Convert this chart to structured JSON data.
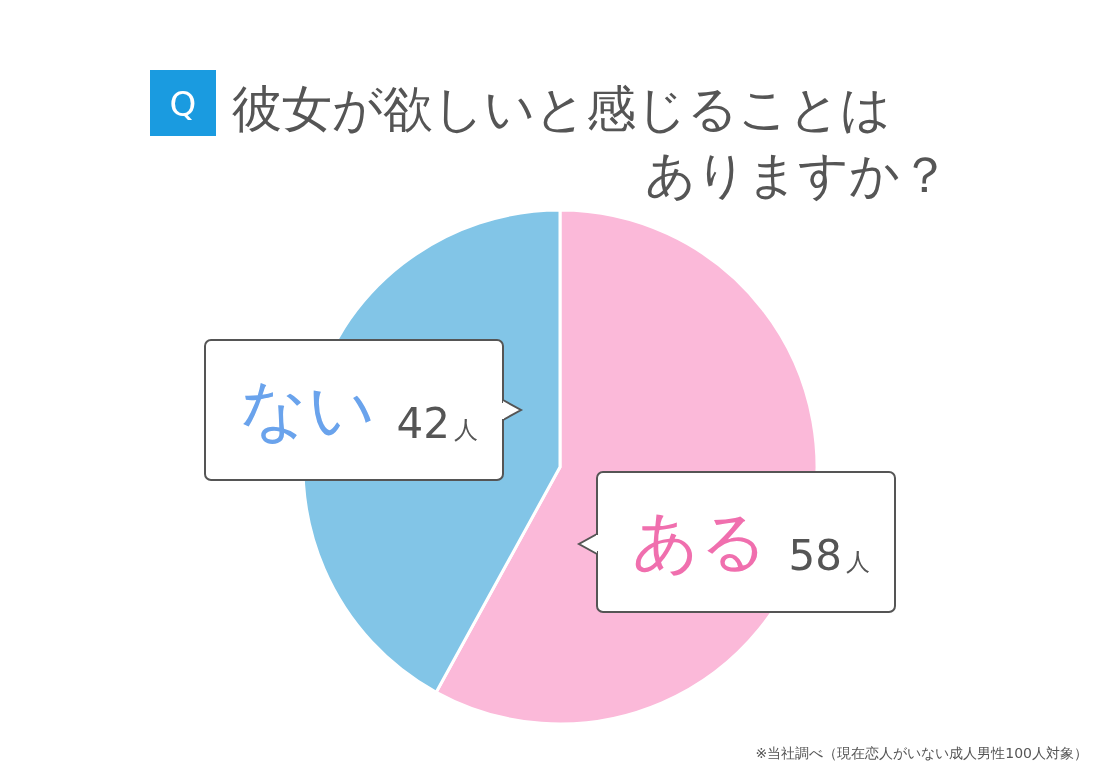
{
  "chart_data": {
    "type": "pie",
    "title": "Q 彼女が欲しいと感じることはありますか？",
    "categories": [
      "ある",
      "ない"
    ],
    "values": [
      58,
      42
    ],
    "colors": [
      "#fbb9d9",
      "#82c5e7"
    ],
    "value_labels": [
      "58人",
      "42人"
    ],
    "annotations": [
      "※当社調べ（現在恋人がいない成人男性100人対象）"
    ]
  }
}
